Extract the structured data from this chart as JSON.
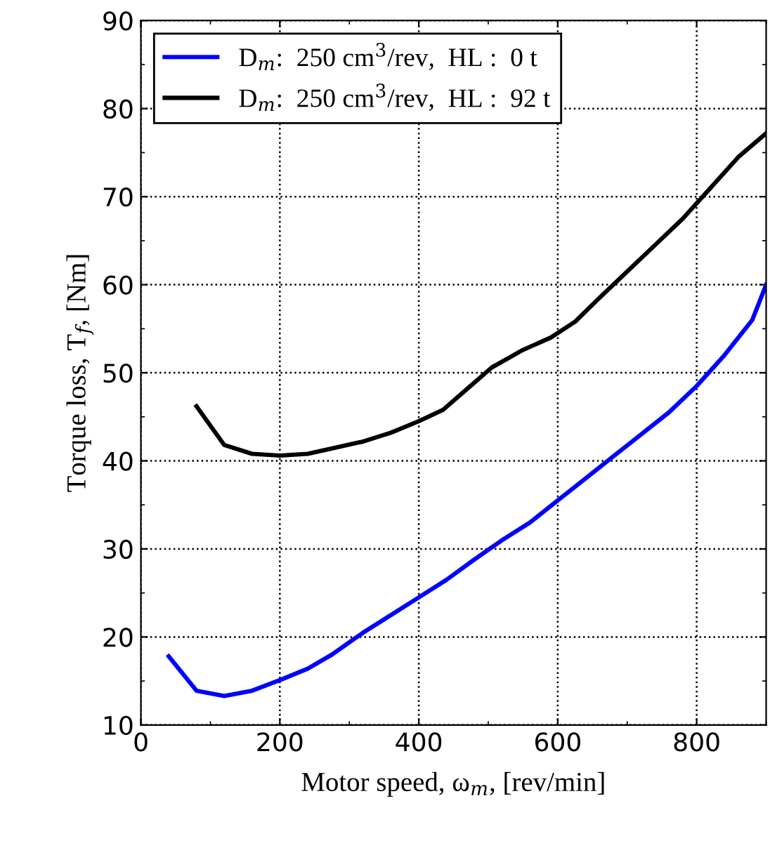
{
  "chart_data": {
    "type": "line",
    "xlabel": "Motor speed, ω$_{m}$, [rev/min]",
    "ylabel": "Torque loss, T$_{f}$, [Nm]",
    "xlim": [
      0,
      900
    ],
    "ylim": [
      10,
      90
    ],
    "xticks": [
      0,
      200,
      400,
      600,
      800
    ],
    "yticks": [
      10,
      20,
      30,
      40,
      50,
      60,
      70,
      80,
      90
    ],
    "grid": true,
    "legend": "top left",
    "line_style": "solid",
    "marker": "none",
    "series": [
      {
        "name": "D$_{m}$:  250 cm$^{3}$/rev,  HL :  0 t",
        "color": "#0000ff",
        "x": [
          40,
          80,
          120,
          160,
          200,
          240,
          275,
          320,
          360,
          400,
          440,
          480,
          520,
          560,
          600,
          640,
          680,
          720,
          760,
          800,
          840,
          880,
          900
        ],
        "values": [
          17.8,
          13.9,
          13.3,
          13.9,
          15.1,
          16.4,
          18,
          20.5,
          22.5,
          24.5,
          26.5,
          28.8,
          31,
          33,
          35.5,
          38,
          40.5,
          43,
          45.5,
          48.5,
          52,
          56,
          60
        ]
      },
      {
        "name": "D$_{m}$:  250 cm$^{3}$/rev,  HL :  92 t",
        "color": "#000000",
        "x": [
          80,
          120,
          160,
          200,
          240,
          280,
          320,
          360,
          400,
          435,
          470,
          505,
          550,
          590,
          625,
          660,
          700,
          740,
          780,
          820,
          860,
          900
        ],
        "values": [
          46.2,
          41.8,
          40.8,
          40.6,
          40.8,
          41.5,
          42.2,
          43.2,
          44.5,
          45.8,
          48.2,
          50.6,
          52.6,
          54,
          55.8,
          58.5,
          61.5,
          64.5,
          67.5,
          71,
          74.5,
          77.2
        ]
      }
    ]
  }
}
